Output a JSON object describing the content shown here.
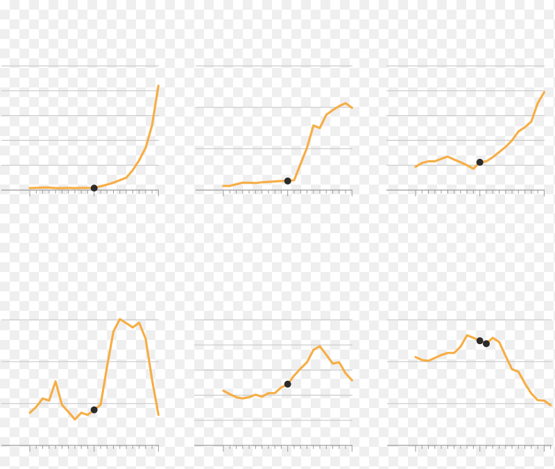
{
  "colors": {
    "line": "#f6ae45",
    "marker": "#2b2b2b",
    "grid": "#c9c9c9",
    "axis": "#9a9a9a"
  },
  "chart_data": [
    {
      "type": "line",
      "grid": true,
      "ylim": [
        0,
        5
      ],
      "xlim": [
        0,
        20
      ],
      "highlight": [
        10
      ],
      "x": [
        0,
        1,
        2,
        3,
        4,
        5,
        6,
        7,
        8,
        9,
        10,
        11,
        12,
        13,
        14,
        15,
        16,
        17,
        18,
        19,
        20
      ],
      "y": [
        0.08,
        0.09,
        0.1,
        0.1,
        0.08,
        0.08,
        0.09,
        0.08,
        0.09,
        0.09,
        0.08,
        0.15,
        0.22,
        0.3,
        0.4,
        0.5,
        0.8,
        1.2,
        1.7,
        2.6,
        4.2
      ]
    },
    {
      "type": "line",
      "grid": true,
      "ylim": [
        0,
        3
      ],
      "xlim": [
        0,
        20
      ],
      "highlight": [
        10
      ],
      "x": [
        0,
        1,
        2,
        3,
        4,
        5,
        6,
        7,
        8,
        9,
        10,
        11,
        12,
        13,
        14,
        15,
        16,
        17,
        18,
        19,
        20
      ],
      "y": [
        0.1,
        0.1,
        0.14,
        0.18,
        0.18,
        0.17,
        0.19,
        0.2,
        0.21,
        0.22,
        0.22,
        0.24,
        0.63,
        1.02,
        1.56,
        1.5,
        1.82,
        1.93,
        2.03,
        2.1,
        1.99
      ]
    },
    {
      "type": "line",
      "grid": true,
      "ylim": [
        0,
        5
      ],
      "xlim": [
        0,
        20
      ],
      "highlight": [
        10
      ],
      "x": [
        0,
        1,
        2,
        3,
        4,
        5,
        6,
        7,
        8,
        9,
        10,
        11,
        12,
        13,
        14,
        15,
        16,
        17,
        18,
        19,
        20
      ],
      "y": [
        0.94,
        1.09,
        1.16,
        1.16,
        1.26,
        1.35,
        1.23,
        1.12,
        1.0,
        0.86,
        1.12,
        1.16,
        1.32,
        1.53,
        1.74,
        2.0,
        2.36,
        2.53,
        2.76,
        3.5,
        3.94
      ]
    },
    {
      "type": "line",
      "grid": true,
      "ylim": [
        0,
        3
      ],
      "xlim": [
        0,
        20
      ],
      "highlight": [
        10
      ],
      "x": [
        0,
        1,
        2,
        3,
        4,
        5,
        6,
        7,
        8,
        9,
        10,
        11,
        12,
        13,
        14,
        15,
        16,
        17,
        18,
        19,
        20
      ],
      "y": [
        0.78,
        0.92,
        1.12,
        1.07,
        1.53,
        0.97,
        0.8,
        0.62,
        0.78,
        0.73,
        0.85,
        0.97,
        1.87,
        2.72,
        3.02,
        2.92,
        2.82,
        2.93,
        2.55,
        1.58,
        0.73
      ]
    },
    {
      "type": "line",
      "grid": true,
      "ylim": [
        0,
        5
      ],
      "xlim": [
        0,
        20
      ],
      "highlight": [
        10
      ],
      "x": [
        0,
        1,
        2,
        3,
        4,
        5,
        6,
        7,
        8,
        9,
        10,
        11,
        12,
        13,
        14,
        15,
        16,
        17,
        18,
        19,
        20
      ],
      "y": [
        2.18,
        2.04,
        1.92,
        1.87,
        1.92,
        2.02,
        1.94,
        2.08,
        2.08,
        2.31,
        2.44,
        2.78,
        3.06,
        3.31,
        3.8,
        3.95,
        3.61,
        3.26,
        3.31,
        2.87,
        2.59
      ]
    },
    {
      "type": "line",
      "grid": true,
      "ylim": [
        0,
        3
      ],
      "xlim": [
        0,
        21
      ],
      "highlight": [
        10,
        11
      ],
      "x": [
        0,
        1,
        2,
        3,
        4,
        5,
        6,
        7,
        8,
        9,
        10,
        11,
        12,
        13,
        14,
        15,
        16,
        17,
        18,
        19,
        20,
        21
      ],
      "y": [
        2.11,
        2.04,
        2.02,
        2.09,
        2.16,
        2.21,
        2.21,
        2.36,
        2.63,
        2.57,
        2.5,
        2.43,
        2.57,
        2.47,
        2.14,
        1.82,
        1.76,
        1.48,
        1.24,
        1.08,
        1.07,
        0.96
      ]
    }
  ]
}
